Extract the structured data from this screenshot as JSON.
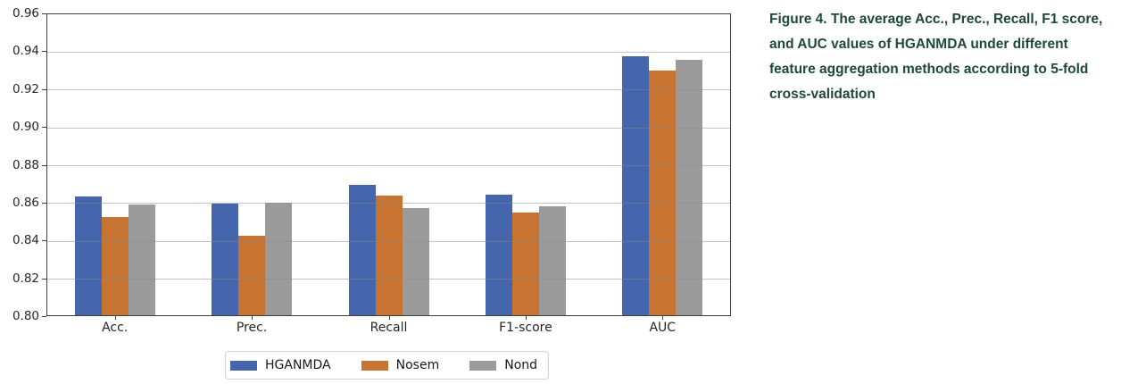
{
  "figure": {
    "caption_lines": [
      "Figure 4. The average Acc., Prec., Recall, F1 score,",
      "and AUC values of HGANMDA under different",
      "feature aggregation methods according to 5-fold",
      "cross-validation"
    ],
    "caption_color": "#1e4839"
  },
  "chart_data": {
    "type": "bar",
    "title": "",
    "xlabel": "",
    "ylabel": "",
    "categories": [
      "Acc.",
      "Prec.",
      "Recall",
      "F1-score",
      "AUC"
    ],
    "series": [
      {
        "name": "HGANMDA",
        "color": "#4565ad",
        "values": [
          0.8627,
          0.8591,
          0.8687,
          0.8639,
          0.9367
        ]
      },
      {
        "name": "Nosem",
        "color": "#c77432",
        "values": [
          0.8518,
          0.8421,
          0.8633,
          0.8541,
          0.9293
        ]
      },
      {
        "name": "Nond",
        "color": "#9b9b9b",
        "values": [
          0.8584,
          0.8597,
          0.8566,
          0.8578,
          0.9348
        ]
      }
    ],
    "ylim": [
      0.8,
      0.96
    ],
    "yticks": [
      "0.80",
      "0.82",
      "0.84",
      "0.86",
      "0.88",
      "0.90",
      "0.92",
      "0.94",
      "0.96"
    ],
    "grid": true,
    "gridline_color": "rgba(137,137,137,0.5)",
    "legend_position": "bottom-center"
  }
}
